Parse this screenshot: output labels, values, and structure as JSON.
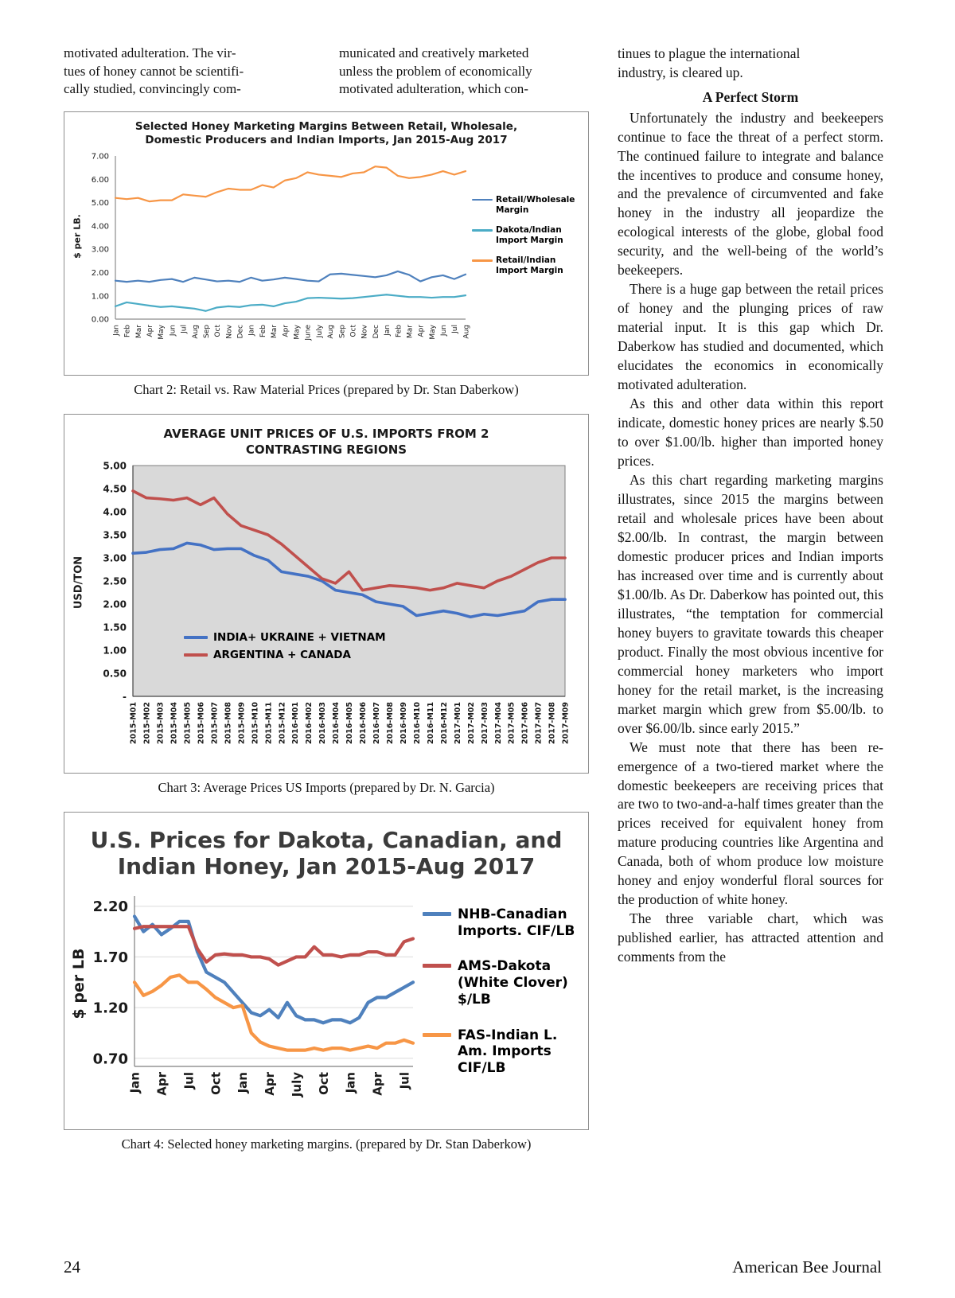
{
  "intro": {
    "col1": "motivated adulteration. The vir-\ntues of honey cannot be scientifi-\ncally studied, convincingly com-",
    "col2": "municated and creatively marketed\nunless the problem of economically\nmotivated adulteration, which con-",
    "col3": "tinues to plague the international\nindustry, is cleared up."
  },
  "article": {
    "heading": "A Perfect Storm",
    "paragraphs": [
      "Unfortunately the industry and beekeepers continue to face the threat of a perfect storm. The continued failure to integrate and balance the incentives to produce and consume honey, and the prevalence of circumvented and fake honey in the industry all jeopardize the ecological interests of the globe, global food security, and the well-being of the world’s beekeepers.",
      "There is a huge gap between the retail prices of honey and the plunging prices of raw material input. It is this gap which Dr. Daberkow has studied and documented, which elucidates the economics in economically motivated adulteration.",
      "As this and other data within this report indicate, domestic honey prices are nearly $.50 to over $1.00/lb. higher than imported honey prices.",
      "As this chart regarding marketing margins illustrates, since 2015 the margins between retail and wholesale prices have been about $2.00/lb. In contrast, the margin between domestic producer prices and Indian imports has increased over time and is currently about $1.00/lb. As Dr. Daberkow has pointed out, this illustrates, “the temptation for commercial honey buyers to gravitate towards this cheaper product. Finally the most obvious incentive for commercial honey marketers who import honey for the retail market, is the increasing market margin which grew from $5.00/lb. to over $6.00/lb. since early 2015.”",
      "We must note that there has been re-emergence of a two-tiered market where the domestic beekeepers are receiving prices that are two to two-and-a-half times greater than the prices received for equivalent honey from mature producing countries like Argentina and Canada, both of whom produce low moisture honey and enjoy wonderful floral sources for the production of white honey.",
      "The three variable chart, which was published earlier, has attracted attention and comments from the"
    ]
  },
  "captions": {
    "chart2": "Chart 2: Retail vs. Raw Material Prices (prepared by Dr. Stan Daberkow)",
    "chart3": "Chart 3: Average Prices US Imports (prepared by Dr. N. Garcia)",
    "chart4": "Chart 4: Selected honey marketing margins. (prepared by Dr. Stan Daberkow)"
  },
  "footer": {
    "page_number": "24",
    "journal_name": "American Bee Journal"
  },
  "chart_data": [
    {
      "id": "chart2",
      "type": "line",
      "title": "Selected Honey Marketing Margins Between Retail, Wholesale, Domestic Producers and Indian Imports, Jan 2015-Aug 2017",
      "ylabel": "$ per LB.",
      "ylim": [
        0,
        7
      ],
      "yticks": [
        {
          "v": 7,
          "label": "7.00"
        },
        {
          "v": 6,
          "label": "6.00"
        },
        {
          "v": 5,
          "label": "5.00"
        },
        {
          "v": 4,
          "label": "4.00"
        },
        {
          "v": 3,
          "label": "3.00"
        },
        {
          "v": 2,
          "label": "2.00"
        },
        {
          "v": 1,
          "label": "1.00"
        },
        {
          "v": 0,
          "label": "0.00"
        }
      ],
      "categories": [
        "Jan",
        "Feb",
        "Mar",
        "Apr",
        "May",
        "Jun",
        "Jul",
        "Aug",
        "Sep",
        "Oct",
        "Nov",
        "Dec",
        "Jan",
        "Feb",
        "Mar",
        "Apr",
        "May",
        "June",
        "July",
        "Aug",
        "Sep",
        "Oct",
        "Nov",
        "Dec",
        "Jan",
        "Feb",
        "Mar",
        "Apr",
        "May",
        "Jun",
        "Jul",
        "Aug"
      ],
      "series": [
        {
          "name": "Retail/Wholesale Margin",
          "color": "#4f81bd",
          "values": [
            1.65,
            1.6,
            1.65,
            1.6,
            1.68,
            1.72,
            1.6,
            1.78,
            1.7,
            1.62,
            1.65,
            1.6,
            1.78,
            1.65,
            1.7,
            1.78,
            1.72,
            1.65,
            1.62,
            1.92,
            1.95,
            1.9,
            1.85,
            1.8,
            1.88,
            2.05,
            1.9,
            1.62,
            1.8,
            1.88,
            1.72,
            1.92
          ]
        },
        {
          "name": "Dakota/Indian Import Margin",
          "color": "#4bacc6",
          "values": [
            0.55,
            0.72,
            0.65,
            0.58,
            0.52,
            0.55,
            0.5,
            0.45,
            0.35,
            0.5,
            0.55,
            0.52,
            0.6,
            0.62,
            0.55,
            0.68,
            0.75,
            0.9,
            0.92,
            0.9,
            0.88,
            0.9,
            0.95,
            1.0,
            1.05,
            1.0,
            0.95,
            0.95,
            0.92,
            0.95,
            0.95,
            1.02
          ]
        },
        {
          "name": "Retail/Indian Import Margin",
          "color": "#f79646",
          "values": [
            5.2,
            5.15,
            5.2,
            5.05,
            5.1,
            5.1,
            5.35,
            5.3,
            5.25,
            5.45,
            5.6,
            5.55,
            5.55,
            5.75,
            5.65,
            5.95,
            6.05,
            6.3,
            6.2,
            6.15,
            6.1,
            6.25,
            6.3,
            6.55,
            6.5,
            6.15,
            6.05,
            6.1,
            6.2,
            6.35,
            6.2,
            6.35
          ]
        }
      ]
    },
    {
      "id": "chart3",
      "type": "line",
      "title": "AVERAGE UNIT PRICES OF U.S. IMPORTS FROM 2 CONTRASTING REGIONS",
      "ylabel": "USD/TON",
      "ylim": [
        0,
        5
      ],
      "yticks": [
        {
          "v": 5,
          "label": "5.00"
        },
        {
          "v": 4.5,
          "label": "4.50"
        },
        {
          "v": 4,
          "label": "4.00"
        },
        {
          "v": 3.5,
          "label": "3.50"
        },
        {
          "v": 3,
          "label": "3.00"
        },
        {
          "v": 2.5,
          "label": "2.50"
        },
        {
          "v": 2,
          "label": "2.00"
        },
        {
          "v": 1.5,
          "label": "1.50"
        },
        {
          "v": 1,
          "label": "1.00"
        },
        {
          "v": 0.5,
          "label": "0.50"
        },
        {
          "v": 0,
          "label": "-"
        }
      ],
      "categories": [
        "2015-M01",
        "2015-M02",
        "2015-M03",
        "2015-M04",
        "2015-M05",
        "2015-M06",
        "2015-M07",
        "2015-M08",
        "2015-M09",
        "2015-M10",
        "2015-M11",
        "2015-M12",
        "2016-M01",
        "2016-M02",
        "2016-M03",
        "2016-M04",
        "2016-M05",
        "2016-M06",
        "2016-M07",
        "2016-M08",
        "2016-M09",
        "2016-M10",
        "2016-M11",
        "2016-M12",
        "2017-M01",
        "2017-M02",
        "2017-M03",
        "2017-M04",
        "2017-M05",
        "2017-M06",
        "2017-M07",
        "2017-M08",
        "2017-M09"
      ],
      "series": [
        {
          "name": "INDIA+ UKRAINE + VIETNAM",
          "color": "#4472c4",
          "values": [
            3.1,
            3.12,
            3.18,
            3.2,
            3.32,
            3.28,
            3.18,
            3.2,
            3.2,
            3.05,
            2.95,
            2.7,
            2.65,
            2.6,
            2.5,
            2.3,
            2.25,
            2.2,
            2.05,
            2.0,
            1.95,
            1.75,
            1.8,
            1.85,
            1.8,
            1.72,
            1.78,
            1.75,
            1.8,
            1.85,
            2.05,
            2.1,
            2.1
          ]
        },
        {
          "name": "ARGENTINA + CANADA",
          "color": "#c0504d",
          "values": [
            4.45,
            4.3,
            4.28,
            4.25,
            4.3,
            4.15,
            4.3,
            3.95,
            3.7,
            3.6,
            3.5,
            3.3,
            3.05,
            2.8,
            2.55,
            2.45,
            2.7,
            2.3,
            2.35,
            2.4,
            2.38,
            2.35,
            2.3,
            2.35,
            2.45,
            2.4,
            2.35,
            2.5,
            2.6,
            2.75,
            2.9,
            3.0,
            3.0
          ]
        }
      ]
    },
    {
      "id": "chart4",
      "type": "line",
      "title": "U.S. Prices for Dakota, Canadian, and Indian Honey, Jan 2015-Aug 2017",
      "ylabel": "$ per LB",
      "ylim": [
        0.62,
        2.3
      ],
      "yticks": [
        {
          "v": 2.2,
          "label": "2.20"
        },
        {
          "v": 1.7,
          "label": "1.70"
        },
        {
          "v": 1.2,
          "label": "1.20"
        },
        {
          "v": 0.7,
          "label": "0.70"
        }
      ],
      "x_ticks": [
        {
          "i": 0,
          "label": "Jan"
        },
        {
          "i": 3,
          "label": "Apr"
        },
        {
          "i": 6,
          "label": "Jul"
        },
        {
          "i": 9,
          "label": "Oct"
        },
        {
          "i": 12,
          "label": "Jan"
        },
        {
          "i": 15,
          "label": "Apr"
        },
        {
          "i": 18,
          "label": "July"
        },
        {
          "i": 21,
          "label": "Oct"
        },
        {
          "i": 24,
          "label": "Jan"
        },
        {
          "i": 27,
          "label": "Apr"
        },
        {
          "i": 30,
          "label": "Jul"
        }
      ],
      "series": [
        {
          "name": "NHB-Canadian Imports.  CIF/LB",
          "color": "#4f81bd",
          "values": [
            2.1,
            1.95,
            2.02,
            1.92,
            1.98,
            2.05,
            2.05,
            1.75,
            1.55,
            1.5,
            1.45,
            1.35,
            1.25,
            1.15,
            1.12,
            1.18,
            1.1,
            1.25,
            1.12,
            1.08,
            1.08,
            1.05,
            1.08,
            1.08,
            1.05,
            1.1,
            1.25,
            1.3,
            1.3,
            1.35,
            1.4,
            1.45
          ]
        },
        {
          "name": "AMS-Dakota (White Clover) $/LB",
          "color": "#c0504d",
          "values": [
            1.98,
            2.0,
            2.0,
            2.0,
            2.0,
            2.0,
            2.0,
            1.78,
            1.65,
            1.72,
            1.73,
            1.72,
            1.72,
            1.7,
            1.7,
            1.68,
            1.62,
            1.66,
            1.7,
            1.7,
            1.8,
            1.72,
            1.72,
            1.7,
            1.72,
            1.72,
            1.75,
            1.75,
            1.72,
            1.72,
            1.85,
            1.88
          ]
        },
        {
          "name": "FAS-Indian L. Am. Imports CIF/LB",
          "color": "#f79646",
          "values": [
            1.45,
            1.32,
            1.36,
            1.42,
            1.5,
            1.52,
            1.45,
            1.45,
            1.38,
            1.3,
            1.25,
            1.2,
            1.22,
            0.95,
            0.86,
            0.82,
            0.8,
            0.78,
            0.78,
            0.78,
            0.8,
            0.78,
            0.8,
            0.8,
            0.78,
            0.8,
            0.82,
            0.8,
            0.85,
            0.85,
            0.88,
            0.85
          ]
        }
      ]
    }
  ]
}
